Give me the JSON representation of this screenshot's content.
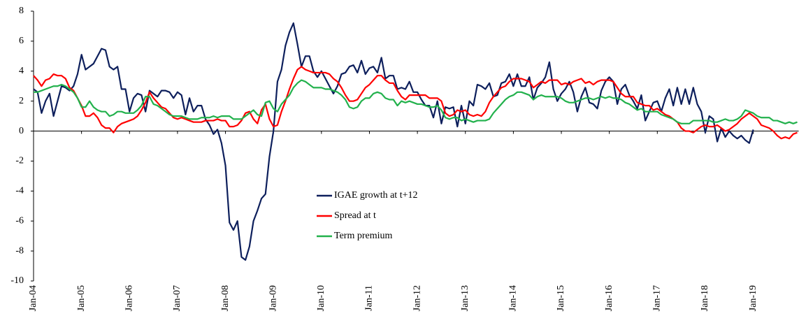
{
  "chart_data": {
    "type": "line",
    "categories": [
      "Jan-04",
      null,
      null,
      null,
      null,
      null,
      null,
      null,
      null,
      null,
      null,
      null,
      "Jan-05",
      null,
      null,
      null,
      null,
      null,
      null,
      null,
      null,
      null,
      null,
      null,
      "Jan-06",
      null,
      null,
      null,
      null,
      null,
      null,
      null,
      null,
      null,
      null,
      null,
      "Jan-07",
      null,
      null,
      null,
      null,
      null,
      null,
      null,
      null,
      null,
      null,
      null,
      "Jan-08",
      null,
      null,
      null,
      null,
      null,
      null,
      null,
      null,
      null,
      null,
      null,
      "Jan-09",
      null,
      null,
      null,
      null,
      null,
      null,
      null,
      null,
      null,
      null,
      null,
      "Jan-10",
      null,
      null,
      null,
      null,
      null,
      null,
      null,
      null,
      null,
      null,
      null,
      "Jan-11",
      null,
      null,
      null,
      null,
      null,
      null,
      null,
      null,
      null,
      null,
      null,
      "Jan-12",
      null,
      null,
      null,
      null,
      null,
      null,
      null,
      null,
      null,
      null,
      null,
      "Jan-13",
      null,
      null,
      null,
      null,
      null,
      null,
      null,
      null,
      null,
      null,
      null,
      "Jan-14",
      null,
      null,
      null,
      null,
      null,
      null,
      null,
      null,
      null,
      null,
      null,
      "Jan-15",
      null,
      null,
      null,
      null,
      null,
      null,
      null,
      null,
      null,
      null,
      null,
      "Jan-16",
      null,
      null,
      null,
      null,
      null,
      null,
      null,
      null,
      null,
      null,
      null,
      "Jan-17",
      null,
      null,
      null,
      null,
      null,
      null,
      null,
      null,
      null,
      null,
      null,
      "Jan-18",
      null,
      null,
      null,
      null,
      null,
      null,
      null,
      null,
      null,
      null,
      null,
      "Jan-19",
      null,
      null,
      null,
      null,
      null,
      null,
      null,
      null,
      null,
      null,
      null
    ],
    "series": [
      {
        "name": "IGAE growth at t+12",
        "color": "#0d1f5c",
        "values": [
          2.8,
          2.6,
          1.2,
          2.0,
          2.5,
          1.0,
          2.0,
          3.0,
          2.9,
          2.7,
          3.0,
          3.8,
          5.1,
          4.1,
          4.3,
          4.5,
          5.0,
          5.5,
          5.4,
          4.3,
          4.1,
          4.3,
          2.8,
          2.8,
          1.3,
          2.2,
          2.5,
          2.4,
          1.3,
          2.7,
          2.5,
          2.3,
          2.7,
          2.7,
          2.6,
          2.2,
          2.6,
          2.4,
          1.1,
          2.2,
          1.3,
          1.7,
          1.7,
          0.8,
          0.4,
          -0.2,
          0.1,
          -0.8,
          -2.3,
          -6.1,
          -6.6,
          -6.0,
          -8.4,
          -8.6,
          -7.7,
          -6.0,
          -5.3,
          -4.5,
          -4.2,
          -1.7,
          0.0,
          3.3,
          4.1,
          5.7,
          6.6,
          7.2,
          5.8,
          4.3,
          5.0,
          5.0,
          4.0,
          3.6,
          4.0,
          3.5,
          3.0,
          2.5,
          3.0,
          3.8,
          3.9,
          4.3,
          4.4,
          3.9,
          4.7,
          3.8,
          4.2,
          4.3,
          3.9,
          4.9,
          3.5,
          3.7,
          3.7,
          2.8,
          2.9,
          2.8,
          3.3,
          2.6,
          2.6,
          2.1,
          1.7,
          1.7,
          0.9,
          2.0,
          0.5,
          1.6,
          1.5,
          1.6,
          0.3,
          1.7,
          0.5,
          2.0,
          1.7,
          3.1,
          3.0,
          2.8,
          3.2,
          2.3,
          2.4,
          3.2,
          3.3,
          3.8,
          3.0,
          3.8,
          3.0,
          3.0,
          3.6,
          2.1,
          2.9,
          3.2,
          3.6,
          4.6,
          2.8,
          2.0,
          2.5,
          2.8,
          3.3,
          2.6,
          1.3,
          2.3,
          2.9,
          1.9,
          1.8,
          1.5,
          2.7,
          3.3,
          3.6,
          3.3,
          1.8,
          2.8,
          3.1,
          2.4,
          2.0,
          1.5,
          2.4,
          0.7,
          1.3,
          1.9,
          2.0,
          1.3,
          2.2,
          2.8,
          1.7,
          2.9,
          1.8,
          2.8,
          1.8,
          2.9,
          1.8,
          1.3,
          -0.1,
          1.0,
          0.8,
          -0.7,
          0.2,
          -0.4,
          0.0,
          -0.3,
          -0.5,
          -0.3,
          -0.6,
          -0.8,
          0.1,
          null,
          null,
          null,
          null,
          null,
          null,
          null,
          null,
          null,
          null,
          null
        ]
      },
      {
        "name": "Spread at t",
        "color": "#ff0000",
        "values": [
          3.7,
          3.4,
          3.0,
          3.4,
          3.5,
          3.8,
          3.7,
          3.7,
          3.5,
          2.9,
          2.7,
          2.2,
          1.7,
          1.0,
          1.0,
          1.2,
          0.9,
          0.4,
          0.2,
          0.2,
          -0.1,
          0.3,
          0.5,
          0.6,
          0.7,
          0.8,
          1.0,
          1.4,
          1.9,
          2.6,
          2.2,
          1.9,
          1.6,
          1.5,
          1.2,
          0.9,
          0.8,
          0.9,
          0.8,
          0.7,
          0.6,
          0.6,
          0.6,
          0.7,
          0.7,
          0.7,
          0.8,
          0.7,
          0.7,
          0.3,
          0.3,
          0.4,
          0.7,
          1.2,
          1.3,
          0.8,
          0.5,
          1.4,
          1.8,
          0.8,
          0.3,
          0.4,
          1.3,
          2.0,
          2.8,
          3.5,
          4.1,
          4.3,
          4.1,
          4.0,
          3.9,
          3.9,
          3.9,
          3.9,
          3.8,
          3.5,
          3.3,
          2.9,
          2.4,
          2.0,
          2.0,
          2.1,
          2.5,
          2.9,
          3.1,
          3.4,
          3.7,
          3.7,
          3.4,
          3.2,
          3.2,
          2.7,
          2.3,
          2.1,
          2.4,
          2.4,
          2.4,
          2.4,
          2.4,
          2.2,
          2.2,
          2.2,
          2.0,
          1.2,
          1.0,
          1.1,
          1.4,
          1.3,
          1.4,
          1.1,
          1.0,
          1.1,
          1.0,
          1.3,
          1.9,
          2.3,
          2.6,
          2.9,
          3.0,
          3.3,
          3.5,
          3.5,
          3.5,
          3.4,
          3.3,
          2.9,
          3.1,
          3.3,
          3.2,
          3.4,
          3.4,
          3.4,
          3.1,
          3.2,
          3.1,
          3.3,
          3.4,
          3.5,
          3.2,
          3.3,
          3.1,
          3.3,
          3.4,
          3.4,
          3.4,
          3.3,
          2.9,
          2.5,
          2.3,
          2.3,
          2.3,
          1.9,
          1.8,
          1.7,
          1.7,
          1.4,
          1.5,
          1.3,
          1.1,
          1.0,
          0.8,
          0.6,
          0.2,
          0.0,
          0.0,
          -0.1,
          0.1,
          0.3,
          0.4,
          0.3,
          0.3,
          0.4,
          0.2,
          0.0,
          0.1,
          0.3,
          0.5,
          0.8,
          1.0,
          1.2,
          1.0,
          0.8,
          0.4,
          0.3,
          0.2,
          0.0,
          -0.3,
          -0.5,
          -0.4,
          -0.5,
          -0.2,
          -0.1
        ]
      },
      {
        "name": "Term premium",
        "color": "#22b14c",
        "values": [
          2.6,
          2.6,
          2.7,
          2.8,
          2.9,
          3.0,
          3.0,
          3.1,
          3.0,
          2.8,
          2.6,
          2.2,
          1.6,
          1.6,
          2.0,
          1.6,
          1.4,
          1.3,
          1.3,
          1.0,
          1.1,
          1.3,
          1.3,
          1.2,
          1.2,
          1.2,
          1.4,
          1.7,
          2.3,
          2.3,
          1.8,
          1.7,
          1.5,
          1.3,
          1.1,
          1.0,
          1.0,
          1.0,
          0.9,
          0.8,
          0.8,
          0.8,
          0.9,
          0.9,
          0.9,
          1.0,
          0.9,
          1.0,
          1.0,
          1.0,
          0.8,
          0.8,
          0.8,
          1.0,
          1.2,
          1.4,
          1.1,
          1.0,
          1.9,
          2.0,
          1.5,
          1.3,
          1.8,
          2.1,
          2.4,
          2.9,
          3.2,
          3.4,
          3.3,
          3.1,
          2.9,
          2.9,
          2.9,
          2.8,
          2.8,
          2.7,
          2.6,
          2.4,
          2.1,
          1.6,
          1.5,
          1.6,
          2.0,
          2.2,
          2.2,
          2.5,
          2.6,
          2.5,
          2.2,
          2.1,
          2.1,
          1.7,
          2.0,
          1.9,
          2.0,
          1.9,
          1.8,
          1.8,
          1.7,
          1.6,
          1.6,
          1.7,
          1.4,
          0.9,
          0.8,
          0.9,
          0.9,
          0.7,
          0.8,
          0.7,
          0.6,
          0.7,
          0.7,
          0.7,
          0.8,
          1.2,
          1.5,
          1.8,
          2.1,
          2.3,
          2.4,
          2.6,
          2.6,
          2.5,
          2.4,
          2.1,
          2.3,
          2.4,
          2.3,
          2.3,
          2.3,
          2.3,
          2.2,
          2.0,
          1.9,
          1.9,
          2.0,
          2.1,
          2.2,
          2.2,
          2.1,
          2.2,
          2.3,
          2.2,
          2.3,
          2.2,
          2.2,
          2.1,
          1.9,
          1.8,
          1.6,
          1.4,
          1.5,
          1.3,
          1.3,
          1.3,
          1.3,
          1.1,
          1.0,
          0.9,
          0.8,
          0.6,
          0.5,
          0.5,
          0.5,
          0.7,
          0.7,
          0.7,
          0.7,
          0.7,
          0.6,
          0.6,
          0.7,
          0.8,
          0.7,
          0.7,
          0.8,
          1.0,
          1.4,
          1.3,
          1.2,
          1.0,
          0.9,
          0.9,
          0.9,
          0.7,
          0.7,
          0.6,
          0.5,
          0.6,
          0.5,
          0.6
        ]
      }
    ],
    "ylim": [
      -10,
      8
    ],
    "yticks": [
      -10,
      -8,
      -6,
      -4,
      -2,
      0,
      2,
      4,
      6,
      8
    ],
    "grid": false
  }
}
